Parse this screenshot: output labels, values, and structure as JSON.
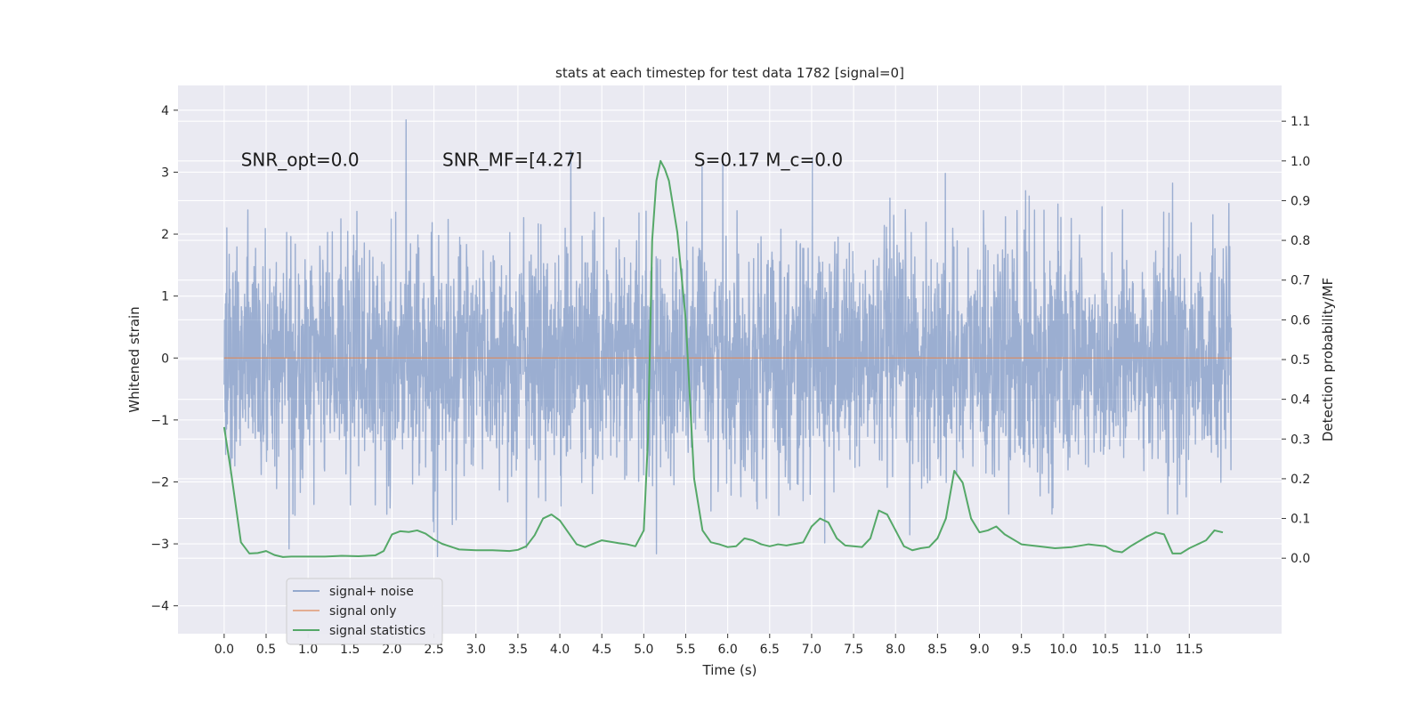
{
  "chart_data": {
    "type": "line",
    "title": "stats at each timestep for test data 1782 [signal=0]",
    "xlabel": "Time (s)",
    "ylabel": "Whitened strain",
    "y2label": "Detection probability/MF",
    "xlim": [
      -0.55,
      12.6
    ],
    "ylim": [
      -4.45,
      4.4
    ],
    "y2lim": [
      -0.19,
      1.19
    ],
    "x_ticks": [
      0.0,
      0.5,
      1.0,
      1.5,
      2.0,
      2.5,
      3.0,
      3.5,
      4.0,
      4.5,
      5.0,
      5.5,
      6.0,
      6.5,
      7.0,
      7.5,
      8.0,
      8.5,
      9.0,
      9.5,
      10.0,
      10.5,
      11.0,
      11.5
    ],
    "x_tick_labels": [
      "0.0",
      "0.5",
      "1.0",
      "1.5",
      "2.0",
      "2.5",
      "3.0",
      "3.5",
      "4.0",
      "4.5",
      "5.0",
      "5.5",
      "6.0",
      "6.5",
      "7.0",
      "7.5",
      "8.0",
      "8.5",
      "9.0",
      "9.5",
      "10.0",
      "10.5",
      "11.0",
      "11.5"
    ],
    "y_ticks": [
      -4,
      -3,
      -2,
      -1,
      0,
      1,
      2,
      3,
      4
    ],
    "y_tick_labels": [
      "−4",
      "−3",
      "−2",
      "−1",
      "0",
      "1",
      "2",
      "3",
      "4"
    ],
    "y2_ticks": [
      0.0,
      0.1,
      0.2,
      0.3,
      0.4,
      0.5,
      0.6,
      0.7,
      0.8,
      0.9,
      1.0,
      1.1
    ],
    "y2_tick_labels": [
      "0.0",
      "0.1",
      "0.2",
      "0.3",
      "0.4",
      "0.5",
      "0.6",
      "0.7",
      "0.8",
      "0.9",
      "1.0",
      "1.1"
    ],
    "grid": true,
    "legend_position": "lower-left",
    "colors": {
      "background": "#eaeaf2",
      "grid": "#ffffff",
      "noise": "#4c72b0",
      "signal": "#dd8452",
      "stats": "#55a868"
    },
    "series": [
      {
        "name": "signal+ noise",
        "axis": "left",
        "style": "dense_noise",
        "x_range": [
          0.0,
          12.0
        ],
        "core_band": [
          -1.3,
          1.3
        ],
        "typical_extent": [
          -2.5,
          2.5
        ],
        "max": 4.0,
        "min": -3.6
      },
      {
        "name": "signal only",
        "axis": "left",
        "x": [
          0.0,
          12.0
        ],
        "y": [
          0.0,
          0.0
        ]
      },
      {
        "name": "signal statistics",
        "axis": "right",
        "x": [
          0.0,
          0.08,
          0.12,
          0.2,
          0.3,
          0.4,
          0.5,
          0.6,
          0.7,
          0.8,
          1.0,
          1.2,
          1.4,
          1.6,
          1.8,
          1.9,
          2.0,
          2.1,
          2.2,
          2.3,
          2.4,
          2.5,
          2.6,
          2.8,
          3.0,
          3.2,
          3.4,
          3.5,
          3.6,
          3.7,
          3.8,
          3.9,
          4.0,
          4.1,
          4.2,
          4.3,
          4.5,
          4.7,
          4.8,
          4.9,
          5.0,
          5.05,
          5.1,
          5.15,
          5.2,
          5.25,
          5.3,
          5.4,
          5.5,
          5.55,
          5.6,
          5.7,
          5.8,
          5.9,
          6.0,
          6.1,
          6.2,
          6.3,
          6.4,
          6.5,
          6.6,
          6.7,
          6.8,
          6.9,
          7.0,
          7.1,
          7.2,
          7.3,
          7.4,
          7.5,
          7.6,
          7.7,
          7.8,
          7.9,
          8.0,
          8.1,
          8.2,
          8.3,
          8.4,
          8.5,
          8.6,
          8.7,
          8.8,
          8.9,
          9.0,
          9.1,
          9.2,
          9.3,
          9.5,
          9.7,
          9.9,
          10.1,
          10.3,
          10.5,
          10.6,
          10.7,
          10.8,
          11.0,
          11.1,
          11.2,
          11.3,
          11.4,
          11.5,
          11.7,
          11.8,
          11.9
        ],
        "y": [
          0.33,
          0.22,
          0.16,
          0.04,
          0.012,
          0.013,
          0.018,
          0.008,
          0.003,
          0.004,
          0.004,
          0.004,
          0.006,
          0.005,
          0.007,
          0.018,
          0.06,
          0.068,
          0.066,
          0.07,
          0.062,
          0.047,
          0.036,
          0.022,
          0.02,
          0.02,
          0.018,
          0.021,
          0.03,
          0.058,
          0.1,
          0.11,
          0.095,
          0.065,
          0.035,
          0.028,
          0.045,
          0.038,
          0.035,
          0.03,
          0.07,
          0.3,
          0.8,
          0.95,
          1.0,
          0.98,
          0.95,
          0.82,
          0.6,
          0.4,
          0.2,
          0.07,
          0.04,
          0.035,
          0.028,
          0.03,
          0.05,
          0.045,
          0.035,
          0.03,
          0.035,
          0.032,
          0.036,
          0.04,
          0.08,
          0.1,
          0.09,
          0.05,
          0.032,
          0.03,
          0.028,
          0.05,
          0.12,
          0.11,
          0.07,
          0.03,
          0.02,
          0.025,
          0.028,
          0.05,
          0.1,
          0.22,
          0.19,
          0.1,
          0.065,
          0.07,
          0.08,
          0.06,
          0.035,
          0.03,
          0.025,
          0.028,
          0.035,
          0.03,
          0.018,
          0.015,
          0.03,
          0.055,
          0.065,
          0.06,
          0.012,
          0.012,
          0.025,
          0.045,
          0.07,
          0.065
        ]
      }
    ],
    "annotations": [
      {
        "text": "SNR_opt=0.0",
        "x": 0.2,
        "y": 3.2
      },
      {
        "text": "SNR_MF=[4.27]",
        "x": 2.6,
        "y": 3.2
      },
      {
        "text": "S=0.17   M_c=0.0",
        "x": 5.6,
        "y": 3.2
      }
    ]
  }
}
